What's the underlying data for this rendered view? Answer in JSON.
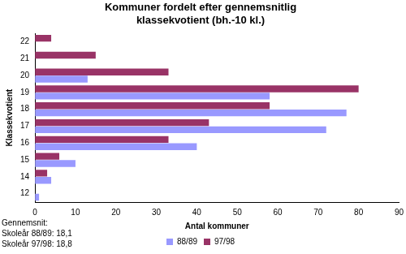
{
  "chart_data": {
    "type": "bar",
    "orientation": "horizontal",
    "title": [
      "Kommuner fordelt efter gennemsnitlig",
      "klassekvotient (bh.-10 kl.)"
    ],
    "x_label": "Antal kommuner",
    "y_label": "Klassekvotient",
    "categories": [
      "12",
      "14",
      "15",
      "16",
      "17",
      "18",
      "19",
      "20",
      "21",
      "22"
    ],
    "series": [
      {
        "name": "88/89",
        "color": "#9999ff",
        "values": [
          1,
          4,
          10,
          40,
          72,
          77,
          58,
          13,
          0,
          0
        ]
      },
      {
        "name": "97/98",
        "color": "#993366",
        "values": [
          0,
          3,
          6,
          33,
          43,
          58,
          80,
          33,
          15,
          4
        ]
      }
    ],
    "xlim": [
      0,
      90
    ],
    "xticks": [
      0,
      10,
      20,
      30,
      40,
      50,
      60,
      70,
      80,
      90
    ],
    "grid": false,
    "legend": "bottom",
    "annotations": [
      "Gennemsnit:",
      "Skoleår 88/89: 18,1",
      "Skoleår 97/98: 18,8"
    ]
  }
}
